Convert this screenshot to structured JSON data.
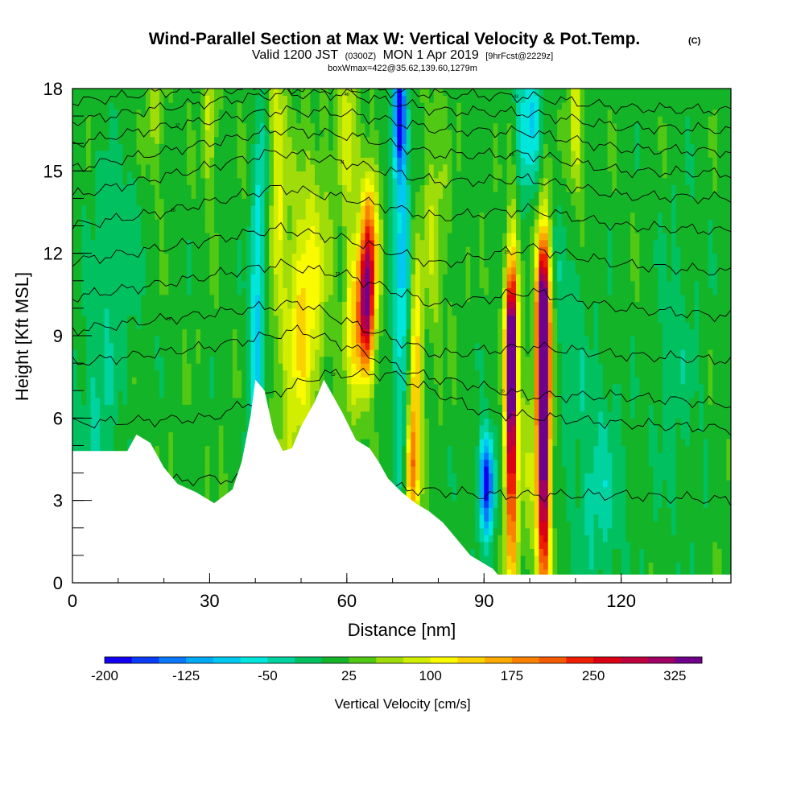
{
  "chart_data": {
    "type": "heatmap",
    "title": "Wind-Parallel Section at Max W: Vertical Velocity & Pot.Temp.",
    "title_mark": "(C)",
    "subtitle_valid": "Valid 1200 JST",
    "subtitle_utc": "(0300Z)",
    "subtitle_date": "MON 1 Apr 2019",
    "subtitle_fcst": "[9hrFcst@2229z]",
    "subtitle_box": "boxWmax=422@35.62,139.60,1279m",
    "xlabel": "Distance [nm]",
    "ylabel": "Height [Kft MSL]",
    "xlim": [
      0,
      144
    ],
    "ylim": [
      0,
      18
    ],
    "x_ticks": [
      0,
      30,
      60,
      90,
      120
    ],
    "y_ticks": [
      0,
      3,
      6,
      9,
      12,
      15,
      18
    ],
    "colorbar": {
      "label": "Vertical Velocity [cm/s]",
      "range": [
        -200,
        350
      ],
      "tick_values": [
        -200,
        -125,
        -50,
        25,
        100,
        175,
        250,
        325
      ],
      "colors": [
        "#1400f0",
        "#0a3cf8",
        "#0a78f8",
        "#00aaf5",
        "#00c8f0",
        "#00e6dc",
        "#00d2a0",
        "#00c060",
        "#14b428",
        "#50c814",
        "#a0dc0a",
        "#d2ee00",
        "#fafa00",
        "#fad200",
        "#faaa00",
        "#fa8200",
        "#f55a00",
        "#f01e00",
        "#dc0014",
        "#be003c",
        "#a00064",
        "#6e008c"
      ]
    },
    "terrain": [
      [
        0,
        4.8
      ],
      [
        6,
        4.8
      ],
      [
        12,
        4.8
      ],
      [
        14,
        5.4
      ],
      [
        17,
        5.1
      ],
      [
        20,
        4.2
      ],
      [
        23,
        3.6
      ],
      [
        27,
        3.3
      ],
      [
        31,
        2.9
      ],
      [
        35,
        3.4
      ],
      [
        37,
        4.4
      ],
      [
        39,
        6.1
      ],
      [
        40,
        7.4
      ],
      [
        42,
        7.0
      ],
      [
        44,
        5.5
      ],
      [
        46,
        4.8
      ],
      [
        48,
        4.9
      ],
      [
        50,
        5.7
      ],
      [
        53,
        6.6
      ],
      [
        55,
        7.4
      ],
      [
        57,
        6.8
      ],
      [
        59,
        6.2
      ],
      [
        62,
        5.2
      ],
      [
        65,
        4.9
      ],
      [
        67,
        4.4
      ],
      [
        69,
        3.8
      ],
      [
        72,
        3.3
      ],
      [
        75,
        2.9
      ],
      [
        78,
        2.6
      ],
      [
        81,
        2.2
      ],
      [
        84,
        1.6
      ],
      [
        87,
        1.0
      ],
      [
        90,
        0.7
      ],
      [
        92,
        0.5
      ],
      [
        93,
        0.3
      ],
      [
        144,
        0.3
      ]
    ],
    "w_field": {
      "background": 15,
      "features": [
        {
          "x": 40,
          "h": 8,
          "sx": 1.2,
          "sh": 3,
          "w": -95
        },
        {
          "x": 41,
          "h": 14,
          "sx": 0.9,
          "sh": 2.5,
          "w": -70
        },
        {
          "x": 45,
          "h": 15,
          "sx": 1.3,
          "sh": 4,
          "w": 85
        },
        {
          "x": 50,
          "h": 9,
          "sx": 2.5,
          "sh": 3,
          "w": 95
        },
        {
          "x": 53,
          "h": 12,
          "sx": 3,
          "sh": 3,
          "w": 55
        },
        {
          "x": 47,
          "h": 3,
          "sx": 2,
          "sh": 2,
          "w": 70
        },
        {
          "x": 64,
          "h": 9.8,
          "sx": 1.4,
          "sh": 1.8,
          "w": 260
        },
        {
          "x": 65,
          "h": 12.5,
          "sx": 1.3,
          "sh": 2,
          "w": 170
        },
        {
          "x": 61,
          "h": 10,
          "sx": 1.2,
          "sh": 3,
          "w": 80
        },
        {
          "x": 72,
          "h": 11,
          "sx": 1.4,
          "sh": 5,
          "w": -95
        },
        {
          "x": 71.5,
          "h": 17,
          "sx": 1,
          "sh": 1.5,
          "w": -190
        },
        {
          "x": 75,
          "h": 7,
          "sx": 1,
          "sh": 3,
          "w": 150
        },
        {
          "x": 74,
          "h": 4,
          "sx": 1,
          "sh": 1.3,
          "w": 120
        },
        {
          "x": 79,
          "h": 13,
          "sx": 2,
          "sh": 3,
          "w": 55
        },
        {
          "x": 90.5,
          "h": 3.6,
          "sx": 1.2,
          "sh": 1.3,
          "w": -210
        },
        {
          "x": 96,
          "h": 5.5,
          "sx": 1,
          "sh": 4,
          "w": 275
        },
        {
          "x": 96,
          "h": 9,
          "sx": 0.8,
          "sh": 2,
          "w": 220
        },
        {
          "x": 103,
          "h": 5,
          "sx": 1.1,
          "sh": 4.3,
          "w": 350
        },
        {
          "x": 103,
          "h": 9.5,
          "sx": 1,
          "sh": 2.2,
          "w": 280
        },
        {
          "x": 99.5,
          "h": 4.5,
          "sx": 1.1,
          "sh": 3.5,
          "w": 40
        },
        {
          "x": 100,
          "h": 17,
          "sx": 2,
          "sh": 2,
          "w": -90
        },
        {
          "x": 110,
          "h": 16.5,
          "sx": 1.2,
          "sh": 2,
          "w": 90
        },
        {
          "x": 115,
          "h": 3.5,
          "sx": 4,
          "sh": 3,
          "w": -50
        },
        {
          "x": 108,
          "h": 10,
          "sx": 3,
          "sh": 3,
          "w": -30
        },
        {
          "x": 30,
          "h": 17,
          "sx": 1.2,
          "sh": 2,
          "w": 65
        },
        {
          "x": 18,
          "h": 17,
          "sx": 1.5,
          "sh": 2,
          "w": 45
        },
        {
          "x": 60,
          "h": 17,
          "sx": 1.5,
          "sh": 2,
          "w": 70
        },
        {
          "x": 5,
          "h": 6,
          "sx": 3,
          "sh": 3,
          "w": -40
        },
        {
          "x": 10,
          "h": 12,
          "sx": 4,
          "sh": 3,
          "w": -35
        },
        {
          "x": 132,
          "h": 8,
          "sx": 4,
          "sh": 4,
          "w": -25
        }
      ]
    },
    "theta_contours": [
      {
        "label": "10",
        "pts": [
          [
            0,
            3.5
          ],
          [
            30,
            3.8
          ],
          [
            60,
            3.6
          ],
          [
            90,
            3.2
          ],
          [
            120,
            3.2
          ],
          [
            144,
            3.0
          ]
        ]
      },
      {
        "label": "13",
        "pts": [
          [
            0,
            5.8
          ],
          [
            30,
            6.0
          ],
          [
            55,
            7.6
          ],
          [
            70,
            7.6
          ],
          [
            90,
            6.2
          ],
          [
            120,
            5.8
          ],
          [
            144,
            5.6
          ]
        ]
      },
      {
        "label": "16",
        "pts": [
          [
            0,
            8.0
          ],
          [
            30,
            8.6
          ],
          [
            50,
            9.2
          ],
          [
            62,
            8.5
          ],
          [
            75,
            7.6
          ],
          [
            100,
            6.8
          ],
          [
            120,
            6.8
          ],
          [
            144,
            6.5
          ]
        ]
      },
      {
        "label": "19",
        "pts": [
          [
            0,
            9.2
          ],
          [
            30,
            9.8
          ],
          [
            50,
            10.2
          ],
          [
            60,
            9.5
          ],
          [
            80,
            8.3
          ],
          [
            100,
            8.6
          ],
          [
            120,
            8.3
          ],
          [
            144,
            8.1
          ]
        ]
      },
      {
        "label": "22",
        "pts": [
          [
            0,
            10.4
          ],
          [
            20,
            10.9
          ],
          [
            45,
            11.6
          ],
          [
            60,
            11.2
          ],
          [
            80,
            10.1
          ],
          [
            100,
            10.6
          ],
          [
            120,
            10.0
          ],
          [
            144,
            9.7
          ]
        ]
      },
      {
        "label": "25",
        "pts": [
          [
            0,
            11.7
          ],
          [
            20,
            12.2
          ],
          [
            45,
            12.9
          ],
          [
            60,
            12.5
          ],
          [
            80,
            11.6
          ],
          [
            100,
            12.2
          ],
          [
            120,
            11.6
          ],
          [
            144,
            11.3
          ]
        ]
      },
      {
        "label": "28",
        "pts": [
          [
            0,
            13.0
          ],
          [
            20,
            13.5
          ],
          [
            45,
            14.4
          ],
          [
            60,
            14.0
          ],
          [
            80,
            13.3
          ],
          [
            100,
            13.6
          ],
          [
            120,
            13.0
          ],
          [
            144,
            12.8
          ]
        ]
      },
      {
        "label": "31",
        "pts": [
          [
            0,
            14.1
          ],
          [
            20,
            14.8
          ],
          [
            45,
            15.7
          ],
          [
            60,
            15.3
          ],
          [
            80,
            14.6
          ],
          [
            100,
            14.7
          ],
          [
            120,
            14.1
          ],
          [
            144,
            14.0
          ]
        ]
      },
      {
        "label": "34",
        "pts": [
          [
            0,
            15.1
          ],
          [
            20,
            15.7
          ],
          [
            45,
            16.5
          ],
          [
            60,
            16.3
          ],
          [
            80,
            15.6
          ],
          [
            100,
            15.6
          ],
          [
            120,
            15.0
          ],
          [
            144,
            14.9
          ]
        ]
      },
      {
        "label": "37",
        "pts": [
          [
            0,
            16.0
          ],
          [
            20,
            16.6
          ],
          [
            45,
            17.2
          ],
          [
            60,
            17.1
          ],
          [
            80,
            16.5
          ],
          [
            100,
            16.4
          ],
          [
            120,
            15.8
          ],
          [
            144,
            15.7
          ]
        ]
      },
      {
        "label": "40",
        "pts": [
          [
            0,
            16.8
          ],
          [
            20,
            17.3
          ],
          [
            45,
            17.8
          ],
          [
            60,
            17.8
          ],
          [
            80,
            17.2
          ],
          [
            100,
            17.1
          ],
          [
            120,
            16.6
          ],
          [
            144,
            16.5
          ]
        ]
      },
      {
        "label": "43",
        "pts": [
          [
            0,
            17.5
          ],
          [
            20,
            17.9
          ],
          [
            40,
            18.0
          ],
          [
            60,
            18.0
          ],
          [
            80,
            17.8
          ],
          [
            100,
            17.7
          ],
          [
            120,
            17.3
          ],
          [
            144,
            17.2
          ]
        ]
      }
    ]
  }
}
